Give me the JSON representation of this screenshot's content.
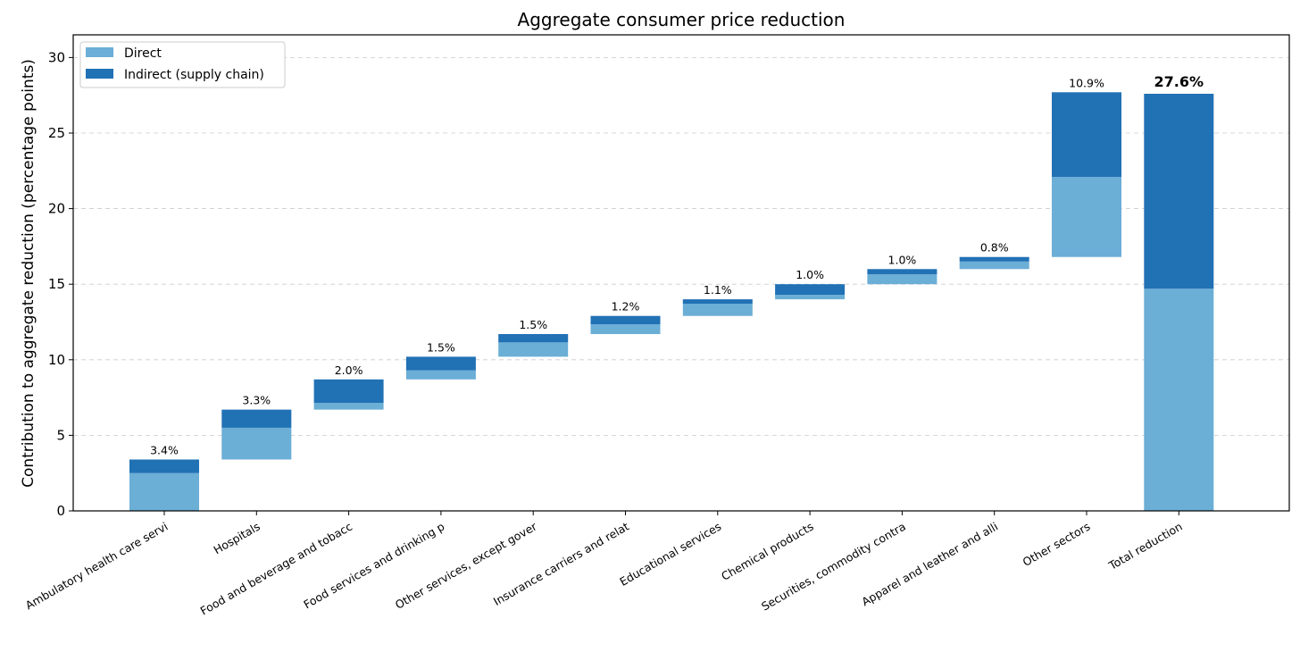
{
  "chart_data": {
    "type": "bar",
    "subtype": "stacked-waterfall",
    "title": "Aggregate consumer price reduction",
    "xlabel": "",
    "ylabel": "Contribution to aggregate reduction (percentage points)",
    "ylim": [
      0,
      31.5
    ],
    "yticks": [
      0,
      5,
      10,
      15,
      20,
      25,
      30
    ],
    "grid": "y-dashed",
    "legend_position": "top-left",
    "colors": {
      "direct": "#6baed6",
      "indirect": "#2171b5"
    },
    "categories": [
      "Ambulatory health care servi",
      "Hospitals",
      "Food and beverage and tobacc",
      "Food services and drinking p",
      "Other services, except gover",
      "Insurance carriers and relat",
      "Educational services",
      "Chemical products",
      "Securities, commodity contra",
      "Apparel and leather and alli",
      "Other sectors",
      "Total reduction"
    ],
    "bases": [
      0,
      3.4,
      6.7,
      8.7,
      10.2,
      11.7,
      12.9,
      14.0,
      15.0,
      16.0,
      16.8,
      0
    ],
    "series": [
      {
        "name": "Direct",
        "values": [
          2.5,
          2.1,
          0.45,
          0.6,
          0.95,
          0.65,
          0.8,
          0.3,
          0.65,
          0.5,
          5.3,
          14.7
        ]
      },
      {
        "name": "Indirect (supply chain)",
        "values": [
          0.9,
          1.2,
          1.55,
          0.9,
          0.55,
          0.55,
          0.3,
          0.7,
          0.35,
          0.3,
          5.6,
          12.9
        ]
      }
    ],
    "bar_labels": [
      "3.4%",
      "3.3%",
      "2.0%",
      "1.5%",
      "1.5%",
      "1.2%",
      "1.1%",
      "1.0%",
      "1.0%",
      "0.8%",
      "10.9%",
      "27.6%"
    ]
  }
}
